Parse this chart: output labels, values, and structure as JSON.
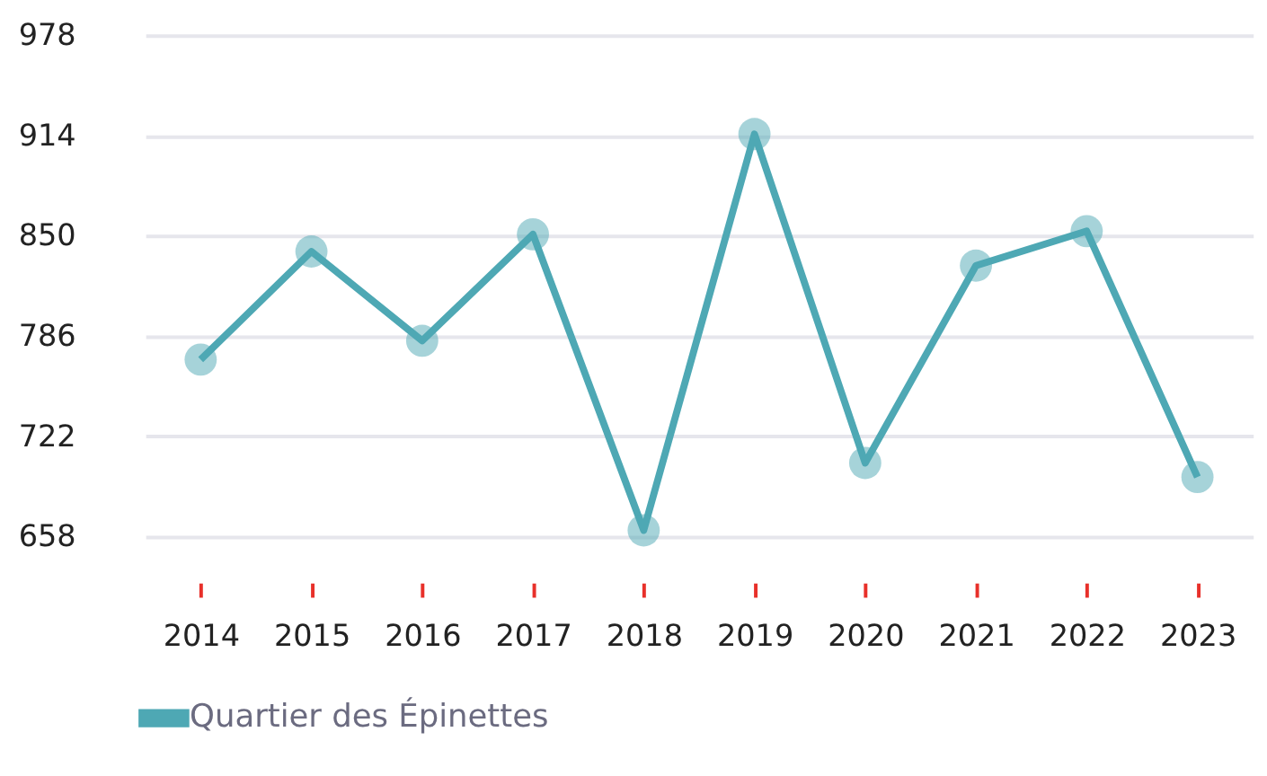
{
  "chart_data": {
    "type": "line",
    "categories": [
      "2014",
      "2015",
      "2016",
      "2017",
      "2018",
      "2019",
      "2020",
      "2021",
      "2022",
      "2023"
    ],
    "series": [
      {
        "name": "Quartier des Épinettes",
        "color": "#4ea8b4",
        "values": [
          771,
          840,
          783,
          851,
          662,
          915,
          705,
          831,
          853,
          696
        ]
      }
    ],
    "ylim": [
      658,
      978
    ],
    "yticks": [
      658,
      722,
      786,
      850,
      914,
      978
    ],
    "grid": "y",
    "legend": "bottom left",
    "marker": "circle",
    "line_style": "solid"
  }
}
